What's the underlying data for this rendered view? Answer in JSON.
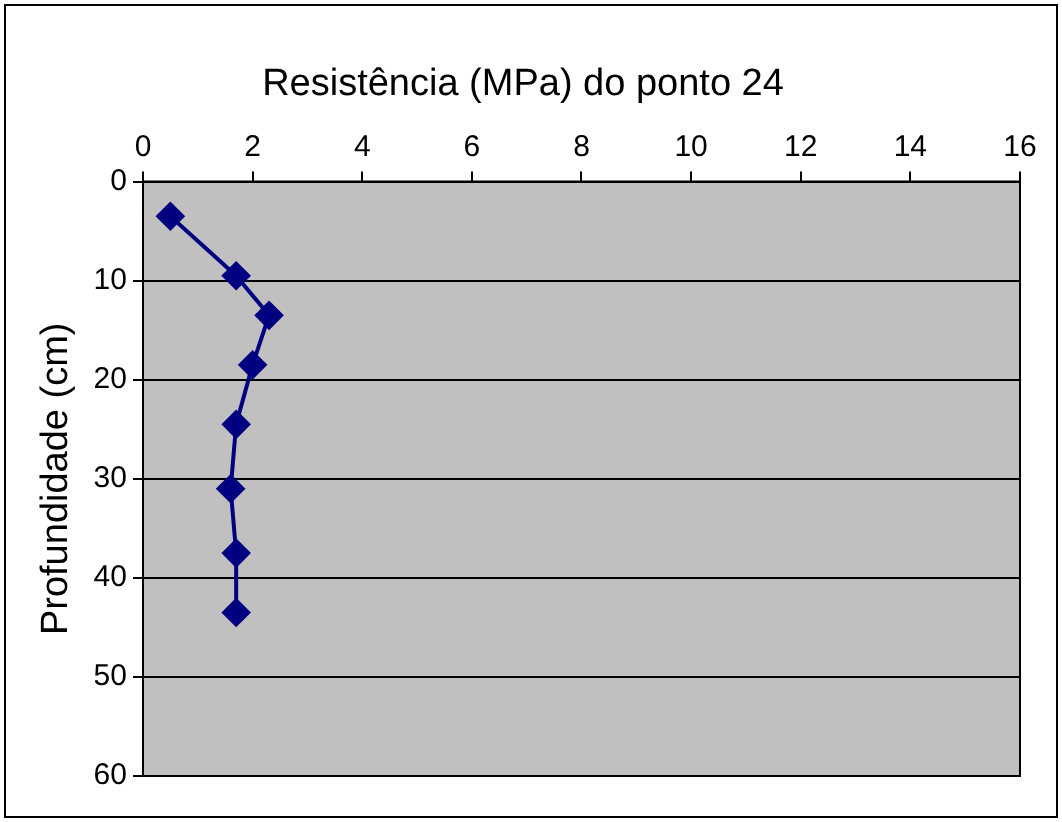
{
  "chart_data": {
    "type": "line",
    "title": "Resistência (MPa) do ponto 24",
    "ylabel": "Profundidade (cm)",
    "x": [
      0.5,
      1.7,
      2.3,
      2.0,
      1.7,
      1.6,
      1.7,
      1.7
    ],
    "series": [
      {
        "color": "#000080",
        "values": [
          3.5,
          9.5,
          13.5,
          18.5,
          24.5,
          31,
          37.5,
          43.5
        ]
      }
    ],
    "xlim": [
      0,
      16
    ],
    "xticks": [
      0,
      2,
      4,
      6,
      8,
      10,
      12,
      14,
      16
    ],
    "ylim": [
      60,
      0
    ],
    "yticks": [
      0,
      10,
      20,
      30,
      40,
      50,
      60
    ],
    "grid": "y",
    "legend": false,
    "marker": "diamond",
    "line_style": "solid"
  }
}
